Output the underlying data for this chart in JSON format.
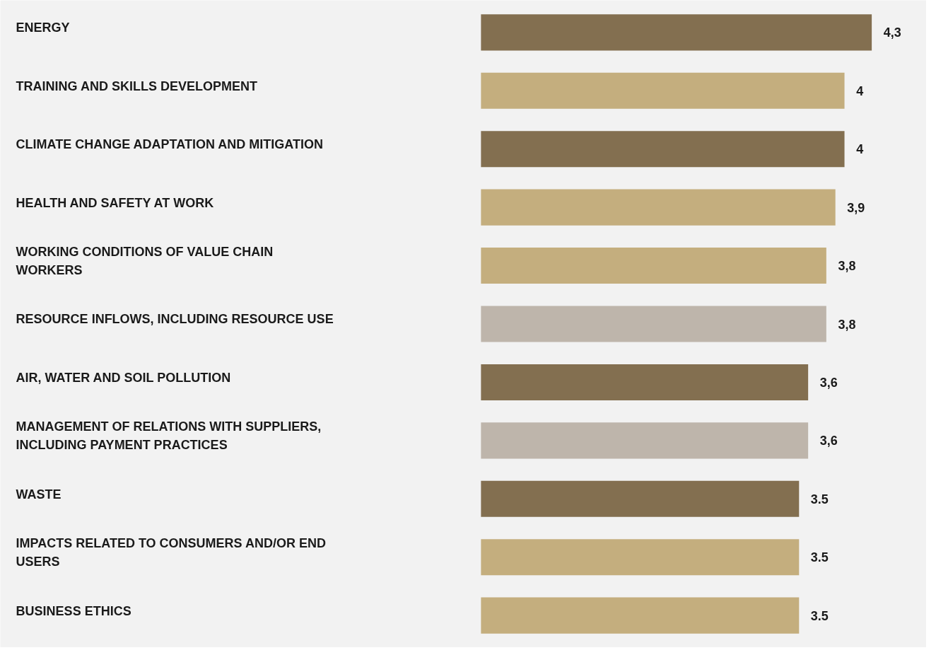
{
  "chart_data": {
    "type": "bar",
    "orientation": "horizontal",
    "categories": [
      "ENERGY",
      "TRAINING AND SKILLS DEVELOPMENT",
      "CLIMATE CHANGE ADAPTATION AND MITIGATION",
      "HEALTH AND SAFETY AT WORK",
      "WORKING CONDITIONS OF VALUE CHAIN WORKERS",
      "RESOURCE INFLOWS, INCLUDING RESOURCE USE",
      "AIR, WATER AND SOIL POLLUTION",
      "MANAGEMENT OF RELATIONS WITH SUPPLIERS, INCLUDING PAYMENT PRACTICES",
      "WASTE",
      "IMPACTS RELATED TO CONSUMERS AND/OR END USERS",
      "BUSINESS ETHICS"
    ],
    "values": [
      4.3,
      4,
      4,
      3.9,
      3.8,
      3.8,
      3.6,
      3.6,
      3.5,
      3.5,
      3.5
    ],
    "value_labels": [
      "4,3",
      "4",
      "4",
      "3,9",
      "3,8",
      "3,8",
      "3,6",
      "3,6",
      "3.5",
      "3.5",
      "3.5"
    ],
    "colors": [
      "#836f50",
      "#c4ae7e",
      "#836f50",
      "#c4ae7e",
      "#c4ae7e",
      "#beb5ab",
      "#836f50",
      "#beb5ab",
      "#836f50",
      "#c4ae7e",
      "#c4ae7e"
    ],
    "grid": false
  }
}
